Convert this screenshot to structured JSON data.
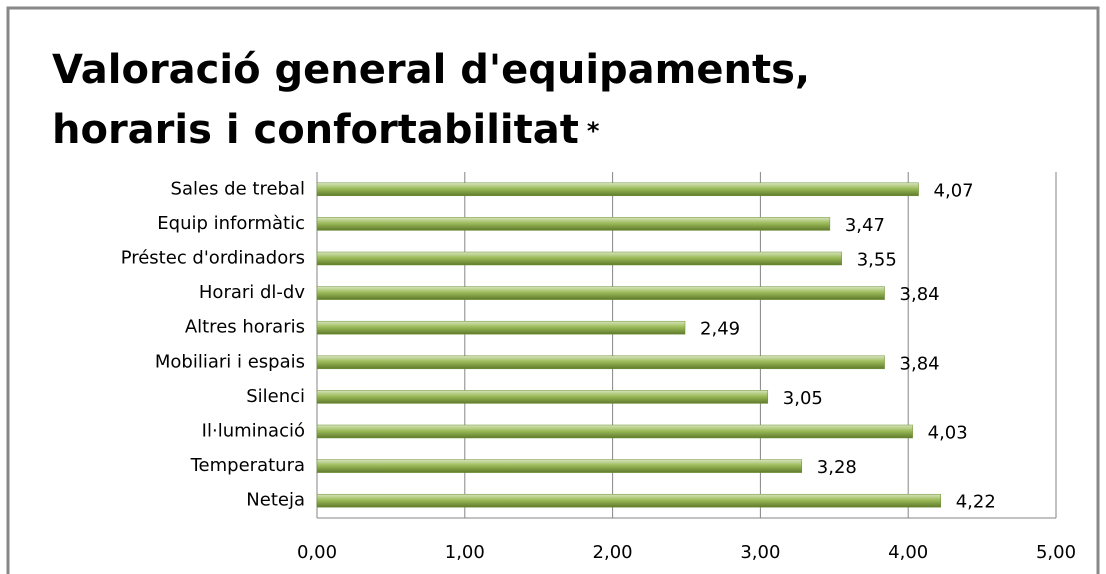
{
  "chart_data": {
    "type": "bar",
    "orientation": "horizontal",
    "title": [
      "Valoració general d'equipaments,",
      "horaris i confortabilitat"
    ],
    "title_mark": "*",
    "categories": [
      "Sales de trebal",
      "Equip informàtic",
      "Préstec d'ordinadors",
      "Horari dl-dv",
      "Altres horaris",
      "Mobiliari i espais",
      "Silenci",
      "Il·luminació",
      "Temperatura",
      "Neteja"
    ],
    "values": [
      4.07,
      3.47,
      3.55,
      3.84,
      2.49,
      3.84,
      3.05,
      4.03,
      3.28,
      4.22
    ],
    "value_labels": [
      "4,07",
      "3,47",
      "3,55",
      "3,84",
      "2,49",
      "3,84",
      "3,05",
      "4,03",
      "3,28",
      "4,22"
    ],
    "color": "#9bbb59",
    "xlim": [
      0,
      5
    ],
    "xticks": [
      {
        "value": 0,
        "label": "0,00"
      },
      {
        "value": 1,
        "label": "1,00"
      },
      {
        "value": 2,
        "label": "2,00"
      },
      {
        "value": 3,
        "label": "3,00"
      },
      {
        "value": 4,
        "label": "4,00"
      },
      {
        "value": 5,
        "label": "5,00"
      }
    ],
    "grid": true
  }
}
